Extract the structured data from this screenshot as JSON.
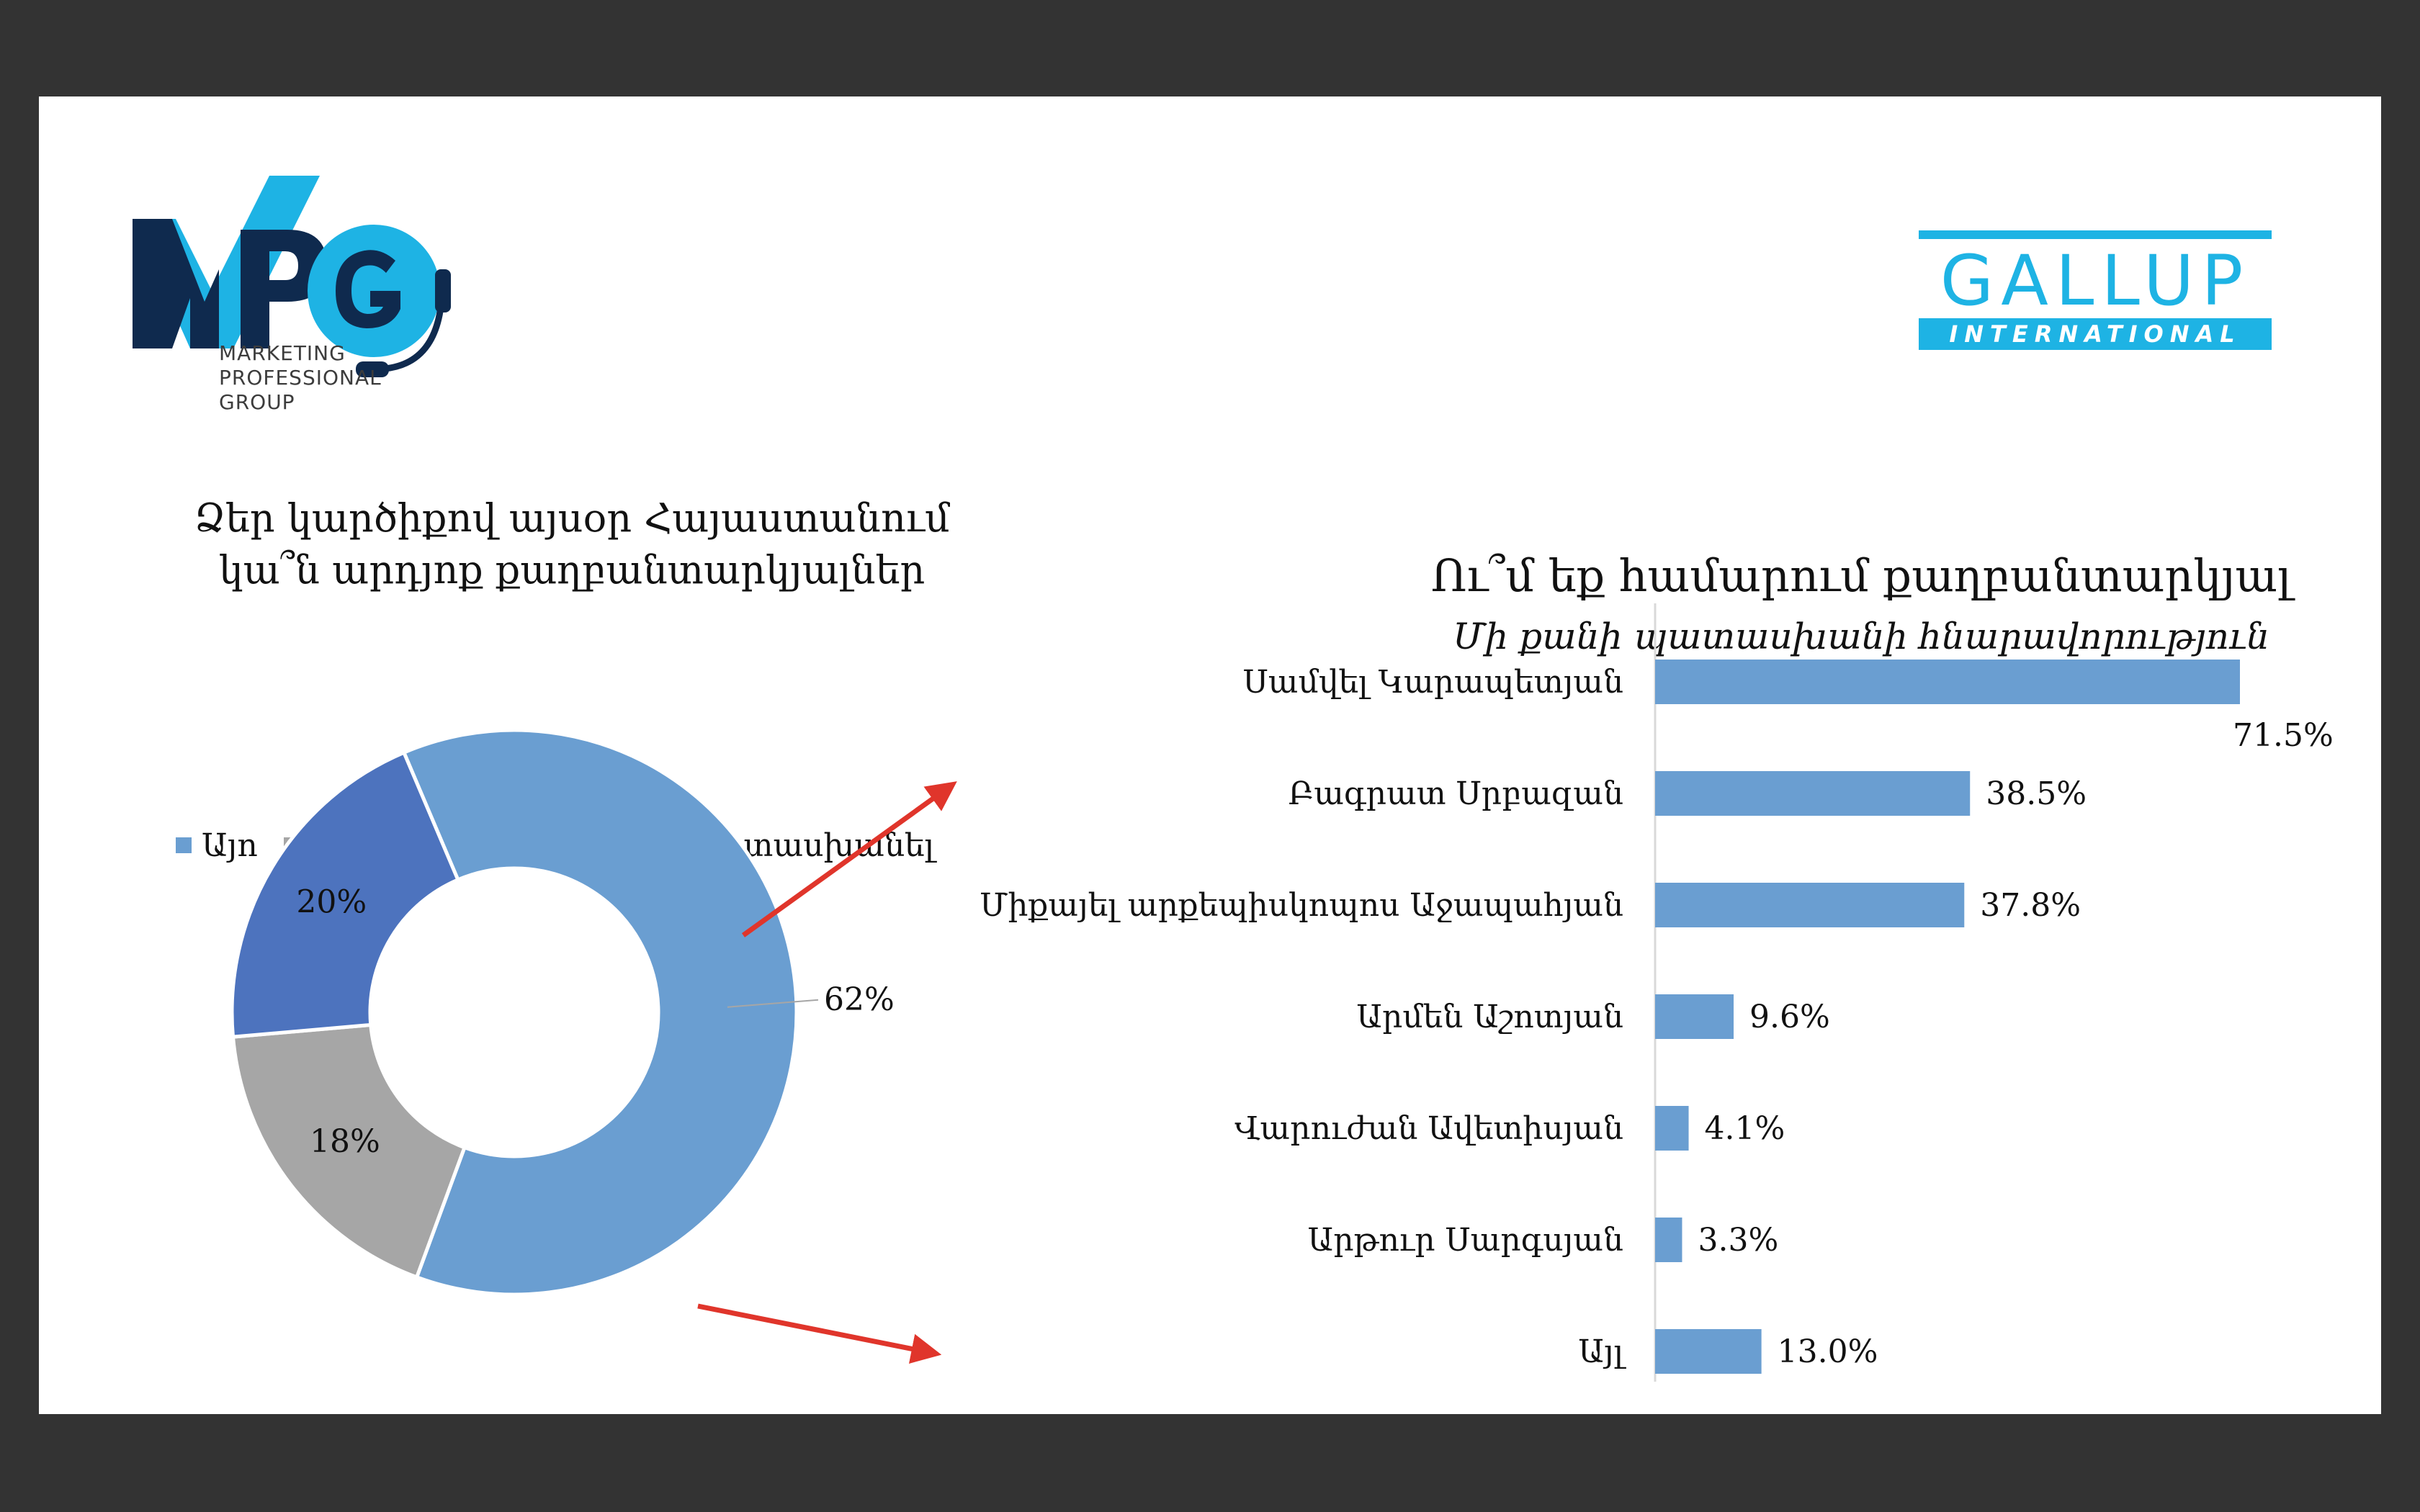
{
  "logos": {
    "mpg_text": "MPG",
    "mpg_sub": "MARKETING\nPROFESSIONAL\nGROUP",
    "gallup_word": "GALLUP",
    "gallup_sub": "INTERNATIONAL"
  },
  "colors": {
    "yes": "#6a9ed1",
    "no": "#a6a6a6",
    "hard": "#4d73be",
    "bar": "#6a9ed1",
    "arrow": "#e0352b",
    "mpg_dark": "#0f2a4e",
    "mpg_light": "#1eb3e4",
    "gallup": "#1eb3e4"
  },
  "left_title": "Ձեր կարծիքով այսօր Հայաստանում կա՞ն արդյոք քաղբանտարկյալներ",
  "right_title": "Ու՞մ եք համարում քաղբանտարկյալ",
  "right_subtitle": "Մի քանի պատասխանի հնարավորություն",
  "chart_data": [
    {
      "type": "pie",
      "donut": true,
      "title": "Ձեր կարծիքով այսօր Հայաստանում կա՞ն արդյոք քաղբանտարկյալներ",
      "legend_position": "top",
      "series": [
        {
          "name": "Այո",
          "value": 62,
          "label": "62%"
        },
        {
          "name": "Ոչ",
          "value": 18,
          "label": "18%"
        },
        {
          "name": "Դժվարանում եմ պատասխանել",
          "value": 20,
          "label": "20%"
        }
      ]
    },
    {
      "type": "bar",
      "orientation": "horizontal",
      "title": "Ու՞մ եք համարում քաղբանտարկյալ",
      "subtitle": "Մի քանի պատասխանի հնարավորություն",
      "categories": [
        "Սամվել Կարապետյան",
        "Բագրատ Սրբազան",
        "Միքայել արքեպիսկոպոս Աջապահյան",
        "Արմեն Աշոտյան",
        "Վարուժան Ավետիսյան",
        "Արթուր Սարգսյան",
        "Այլ"
      ],
      "values": [
        71.5,
        38.5,
        37.8,
        9.6,
        4.1,
        3.3,
        13.0
      ],
      "labels": [
        "71.5%",
        "38.5%",
        "37.8%",
        "9.6%",
        "4.1%",
        "3.3%",
        "13.0%"
      ],
      "xlim": [
        0,
        71.5
      ],
      "grid": false
    }
  ]
}
